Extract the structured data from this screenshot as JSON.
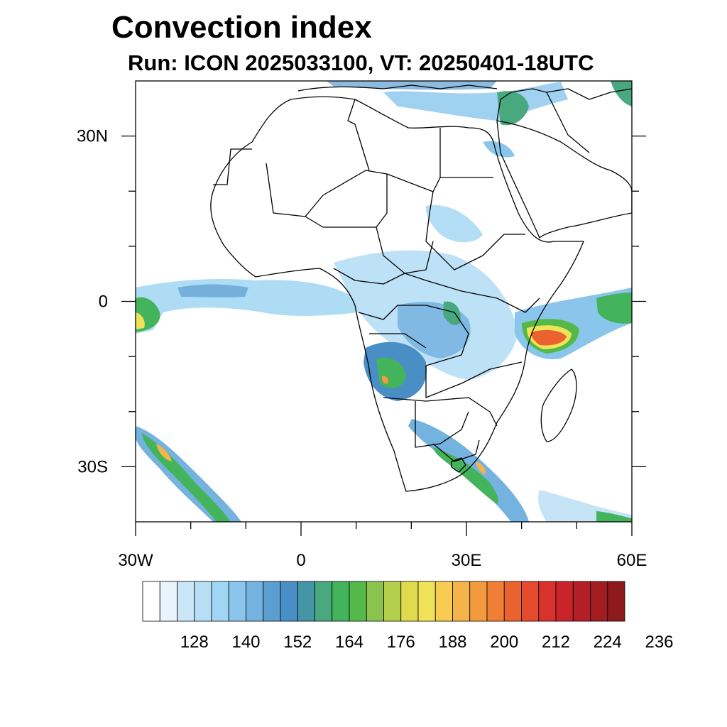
{
  "title": "Convection index",
  "subtitle": "Run: ICON 2025033100,  VT: 20250401-18UTC",
  "map": {
    "region": "Africa",
    "lon_range": [
      -30,
      60
    ],
    "lat_range": [
      -40,
      40
    ],
    "y_axis_labels": [
      {
        "text": "30N",
        "lat": 30
      },
      {
        "text": "0",
        "lat": 0
      },
      {
        "text": "30S",
        "lat": -30
      }
    ],
    "x_axis_labels": [
      {
        "text": "30W",
        "lon": -30
      },
      {
        "text": "0",
        "lon": 0
      },
      {
        "text": "30E",
        "lon": 30
      },
      {
        "text": "60E",
        "lon": 60
      }
    ]
  },
  "colorbar": {
    "colors": [
      "#ffffff",
      "#e8f4fc",
      "#cbe7f7",
      "#b6def5",
      "#a0d6f3",
      "#8ac6ec",
      "#74b2e0",
      "#5c9dd2",
      "#4a8ec6",
      "#4496a6",
      "#48a87e",
      "#43b35c",
      "#55b94a",
      "#8cc34e",
      "#b4cf4c",
      "#dfdb4c",
      "#f1e358",
      "#f8cc50",
      "#f5b44a",
      "#f49a3e",
      "#f07f35",
      "#ea632e",
      "#e44a2b",
      "#d9312b",
      "#c8242a",
      "#b41e27",
      "#a21c22",
      "#8c1a1c"
    ],
    "labels": [
      "128",
      "140",
      "152",
      "164",
      "176",
      "188",
      "200",
      "212",
      "224",
      "236"
    ]
  }
}
